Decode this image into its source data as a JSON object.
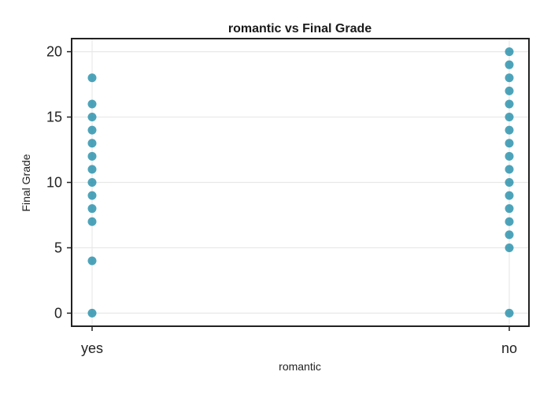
{
  "chart_data": {
    "type": "scatter",
    "title": "romantic vs Final Grade",
    "xlabel": "romantic",
    "ylabel": "Final Grade",
    "categories": [
      "yes",
      "no"
    ],
    "ylim": [
      -1,
      21
    ],
    "yticks": [
      0,
      5,
      10,
      15,
      20
    ],
    "grid": true,
    "point_color": "#1b8aa6",
    "points": [
      {
        "x": "yes",
        "y": 18
      },
      {
        "x": "yes",
        "y": 16
      },
      {
        "x": "yes",
        "y": 15
      },
      {
        "x": "yes",
        "y": 14
      },
      {
        "x": "yes",
        "y": 13
      },
      {
        "x": "yes",
        "y": 12
      },
      {
        "x": "yes",
        "y": 11
      },
      {
        "x": "yes",
        "y": 10
      },
      {
        "x": "yes",
        "y": 9
      },
      {
        "x": "yes",
        "y": 8
      },
      {
        "x": "yes",
        "y": 7
      },
      {
        "x": "yes",
        "y": 4
      },
      {
        "x": "yes",
        "y": 0
      },
      {
        "x": "no",
        "y": 20
      },
      {
        "x": "no",
        "y": 19
      },
      {
        "x": "no",
        "y": 18
      },
      {
        "x": "no",
        "y": 17
      },
      {
        "x": "no",
        "y": 16
      },
      {
        "x": "no",
        "y": 15
      },
      {
        "x": "no",
        "y": 14
      },
      {
        "x": "no",
        "y": 13
      },
      {
        "x": "no",
        "y": 12
      },
      {
        "x": "no",
        "y": 11
      },
      {
        "x": "no",
        "y": 10
      },
      {
        "x": "no",
        "y": 9
      },
      {
        "x": "no",
        "y": 8
      },
      {
        "x": "no",
        "y": 7
      },
      {
        "x": "no",
        "y": 6
      },
      {
        "x": "no",
        "y": 5
      },
      {
        "x": "no",
        "y": 0
      }
    ]
  }
}
